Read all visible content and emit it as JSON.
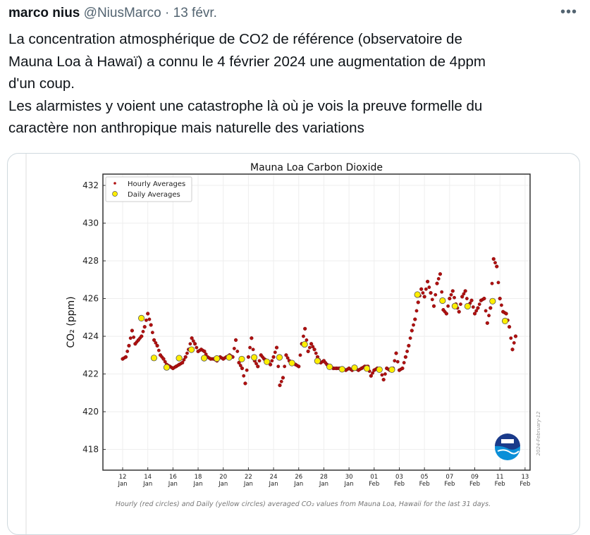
{
  "tweet": {
    "author_name": "marco nius",
    "handle": "@NiusMarco",
    "separator": "·",
    "date": "13 févr.",
    "more_label": "•••",
    "lines": [
      "La concentration atmosphérique de CO2 de référence (observatoire de",
      "Mauna Loa à Hawaï) a connu le 4 février 2024 une augmentation de 4ppm",
      "d'un coup.",
      "Les alarmistes y voient une catastrophe là où je vois la preuve formelle du",
      "caractère non anthropique mais naturelle des variations"
    ]
  },
  "image": {
    "caption": "Hourly (red circles) and Daily (yellow circles) averaged CO₂ values from Mauna Loa, Hawaii for the last 31 days.",
    "stamp": "2024-February-12",
    "logo_text": "NOAA"
  },
  "colors": {
    "hourly": "#b01010",
    "daily": "#ffee00",
    "noaa_dark": "#1a3a8a",
    "noaa_light": "#0a8fd8"
  },
  "chart_data": {
    "type": "scatter",
    "title": "Mauna Loa Carbon Dioxide",
    "ylabel": "CO₂ (ppm)",
    "xlabel": "",
    "ylim": [
      416.9,
      432.6
    ],
    "xlim_days_from_jan12": [
      -1.57,
      32.4
    ],
    "grid": true,
    "legend_placement": "top-left",
    "yticks": [
      "418",
      "420",
      "422",
      "424",
      "426",
      "428",
      "430",
      "432"
    ],
    "ytick_values": [
      418,
      420,
      422,
      424,
      426,
      428,
      430,
      432
    ],
    "xticks": [
      {
        "day": 0,
        "d": "12",
        "m": "Jan"
      },
      {
        "day": 2,
        "d": "14",
        "m": "Jan"
      },
      {
        "day": 4,
        "d": "16",
        "m": "Jan"
      },
      {
        "day": 6,
        "d": "18",
        "m": "Jan"
      },
      {
        "day": 8,
        "d": "20",
        "m": "Jan"
      },
      {
        "day": 10,
        "d": "22",
        "m": "Jan"
      },
      {
        "day": 12,
        "d": "24",
        "m": "Jan"
      },
      {
        "day": 14,
        "d": "26",
        "m": "Jan"
      },
      {
        "day": 16,
        "d": "28",
        "m": "Jan"
      },
      {
        "day": 18,
        "d": "30",
        "m": "Jan"
      },
      {
        "day": 20,
        "d": "01",
        "m": "Feb"
      },
      {
        "day": 22,
        "d": "03",
        "m": "Feb"
      },
      {
        "day": 24,
        "d": "05",
        "m": "Feb"
      },
      {
        "day": 26,
        "d": "07",
        "m": "Feb"
      },
      {
        "day": 28,
        "d": "09",
        "m": "Feb"
      },
      {
        "day": 30,
        "d": "11",
        "m": "Feb"
      },
      {
        "day": 32,
        "d": "13",
        "m": "Feb"
      }
    ],
    "series": [
      {
        "name": "Hourly Averages",
        "start_day": 0,
        "step_days": 0.25,
        "values": [
          422.8,
          422.9,
          423.5,
          424.3,
          423.6,
          423.8,
          424.0,
          424.5,
          425.2,
          424.6,
          423.8,
          423.5,
          423.0,
          422.8,
          422.5,
          422.4,
          422.3,
          422.4,
          422.5,
          422.6,
          422.9,
          423.3,
          423.9,
          423.6,
          423.2,
          423.3,
          423.2,
          422.9,
          422.8,
          422.8,
          422.7,
          422.9,
          422.8,
          422.9,
          423.0,
          422.9,
          423.8,
          422.6,
          422.3,
          421.5,
          422.9,
          423.9,
          422.7,
          422.4,
          423.0,
          422.8,
          422.7,
          422.5,
          422.9,
          423.4,
          421.4,
          421.8,
          423.0,
          422.7,
          422.6,
          422.5,
          422.4,
          423.6,
          424.4,
          423.2,
          423.6,
          423.3,
          422.9,
          422.6,
          422.7,
          422.5,
          422.4,
          422.3,
          422.3,
          422.3,
          422.3,
          422.2,
          422.3,
          422.2,
          422.3,
          422.2,
          422.3,
          422.4,
          422.4,
          421.9,
          422.2,
          422.3,
          422.2,
          421.7,
          422.3,
          422.2,
          422.3,
          423.1,
          422.2,
          422.3,
          422.9,
          423.5,
          424.3,
          424.9,
          425.8,
          426.5,
          426.1,
          426.9,
          426.3,
          425.6,
          426.8,
          427.3,
          425.4,
          425.2,
          426.0,
          426.4,
          425.7,
          425.3,
          426.1,
          426.4,
          425.6,
          425.9,
          425.2,
          425.5,
          425.9,
          426.0,
          424.7,
          425.5,
          428.1,
          427.7,
          426.0,
          425.3,
          425.2,
          424.5,
          423.3,
          424.0
        ]
      },
      {
        "name": "Daily Averages",
        "points": [
          [
            1.49,
            424.96
          ],
          [
            2.49,
            422.85
          ],
          [
            3.5,
            422.35
          ],
          [
            4.49,
            422.84
          ],
          [
            5.47,
            423.29
          ],
          [
            6.48,
            422.84
          ],
          [
            7.49,
            422.82
          ],
          [
            8.47,
            422.88
          ],
          [
            9.47,
            422.79
          ],
          [
            10.46,
            422.88
          ],
          [
            11.47,
            422.65
          ],
          [
            12.47,
            422.88
          ],
          [
            13.46,
            422.58
          ],
          [
            14.47,
            423.57
          ],
          [
            15.49,
            422.69
          ],
          [
            16.46,
            422.38
          ],
          [
            17.45,
            422.25
          ],
          [
            18.44,
            422.33
          ],
          [
            19.42,
            422.29
          ],
          [
            20.42,
            422.23
          ],
          [
            21.41,
            422.23
          ],
          [
            23.44,
            426.21
          ],
          [
            25.44,
            425.89
          ],
          [
            26.42,
            425.6
          ],
          [
            27.43,
            425.59
          ],
          [
            29.42,
            425.86
          ],
          [
            30.41,
            424.81
          ]
        ]
      }
    ]
  }
}
